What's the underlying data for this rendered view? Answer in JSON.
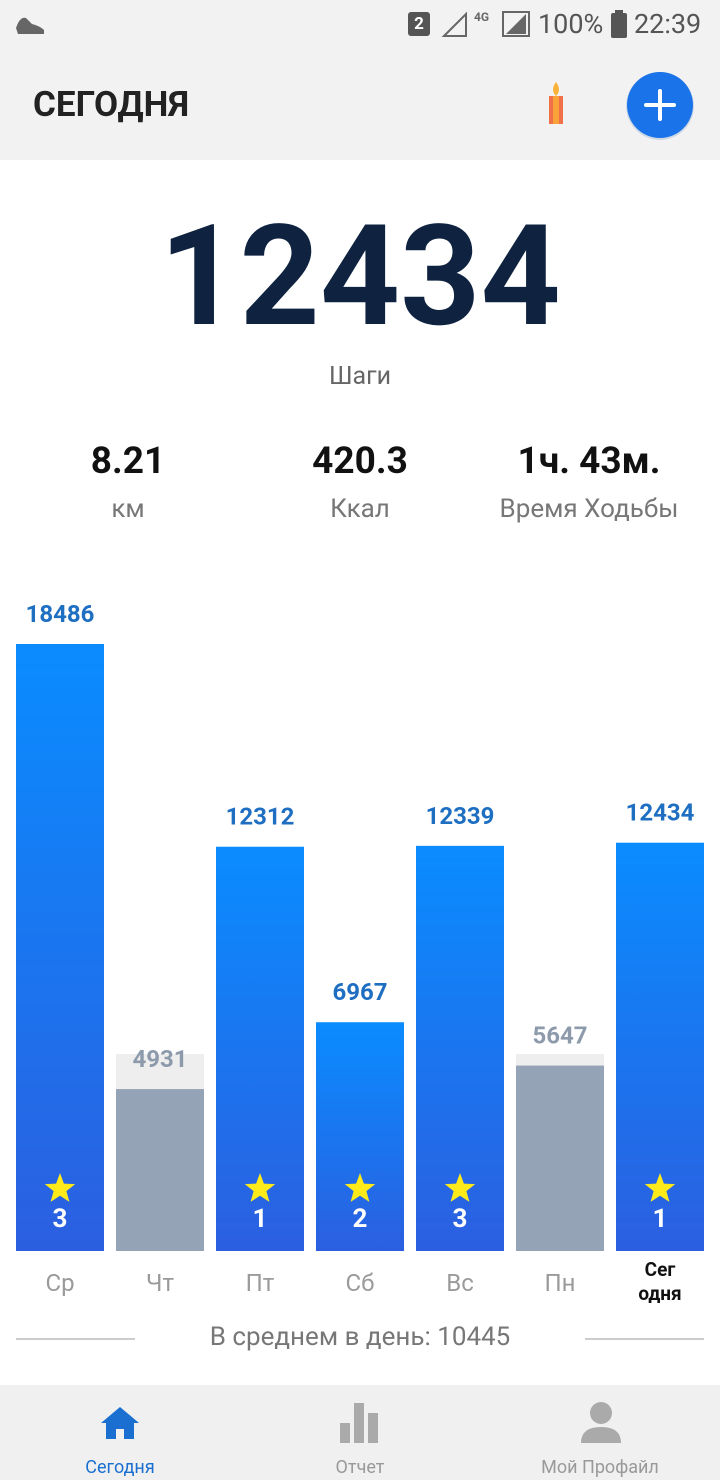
{
  "status_bar": {
    "sim": "2",
    "network": "4G",
    "battery": "100%",
    "time": "22:39"
  },
  "header": {
    "title": "СЕГОДНЯ"
  },
  "summary": {
    "steps": 12434,
    "steps_label": "Шаги",
    "stats": [
      {
        "value": 8.21,
        "label": "км"
      },
      {
        "value": 420.3,
        "label": "Ккал"
      },
      {
        "value": "1ч. 43м.",
        "label": "Время Ходьбы"
      }
    ]
  },
  "chart_data": {
    "type": "bar",
    "categories": [
      "Ср",
      "Чт",
      "Пт",
      "Сб",
      "Вс",
      "Пн",
      "Сег\nодня"
    ],
    "values": [
      18486,
      4931,
      12312,
      6967,
      12339,
      5647,
      12434
    ],
    "colors": [
      "#1a7cf0",
      "#94a3b5",
      "#1a7cf0",
      "#1a7cf0",
      "#1a7cf0",
      "#94a3b5",
      "#1a7cf0"
    ],
    "stars": [
      3,
      null,
      1,
      2,
      3,
      null,
      1
    ]
  },
  "average": "В среднем в день: 10445",
  "nav": [
    "Сегодня",
    "Отчет",
    "Мой Профайл"
  ]
}
